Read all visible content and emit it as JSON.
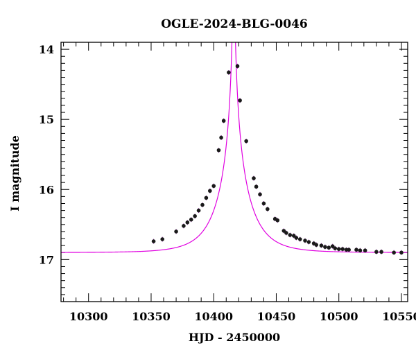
{
  "chart_data": {
    "type": "scatter",
    "title": "OGLE-2024-BLG-0046",
    "xlabel": "HJD - 2450000",
    "ylabel": "I magnitude",
    "xlim": [
      10278,
      10555
    ],
    "ylim": [
      17.6,
      13.9
    ],
    "y_inverted": true,
    "x_major_ticks": [
      10300,
      10350,
      10400,
      10450,
      10500,
      10550
    ],
    "x_tick_labels": [
      "10300",
      "10350",
      "10400",
      "10450",
      "10500",
      "10550"
    ],
    "y_major_ticks": [
      14,
      15,
      16,
      17
    ],
    "y_tick_labels": [
      "14",
      "15",
      "16",
      "17"
    ],
    "grid": false,
    "series": [
      {
        "kind": "points",
        "color": "#1a1a1a",
        "error_color": "#9b30b0",
        "x": [
          10352,
          10359,
          10370,
          10376,
          10379,
          10382,
          10385,
          10388,
          10391,
          10394,
          10397,
          10400,
          10404,
          10406,
          10408,
          10412,
          10419,
          10421,
          10426,
          10432,
          10434,
          10437,
          10440,
          10443,
          10449,
          10451,
          10456,
          10458,
          10461,
          10464,
          10466,
          10469,
          10473,
          10476,
          10480,
          10482,
          10486,
          10489,
          10492,
          10495,
          10497,
          10500,
          10503,
          10506,
          10508,
          10514,
          10517,
          10521,
          10530,
          10534,
          10544,
          10550
        ],
        "y": [
          16.74,
          16.71,
          16.6,
          16.52,
          16.47,
          16.43,
          16.38,
          16.3,
          16.22,
          16.12,
          16.02,
          15.95,
          15.44,
          15.26,
          15.02,
          14.33,
          14.24,
          14.73,
          15.31,
          15.84,
          15.96,
          16.07,
          16.2,
          16.28,
          16.42,
          16.44,
          16.59,
          16.62,
          16.65,
          16.66,
          16.69,
          16.71,
          16.73,
          16.75,
          16.77,
          16.79,
          16.8,
          16.82,
          16.83,
          16.81,
          16.84,
          16.85,
          16.85,
          16.86,
          16.86,
          16.86,
          16.87,
          16.87,
          16.89,
          16.89,
          16.9,
          16.9
        ]
      },
      {
        "kind": "model",
        "color": "#e000e0",
        "model": {
          "t0": 10416,
          "tE": 24,
          "u0": 0.022,
          "baseline_mag": 16.9
        }
      }
    ]
  }
}
